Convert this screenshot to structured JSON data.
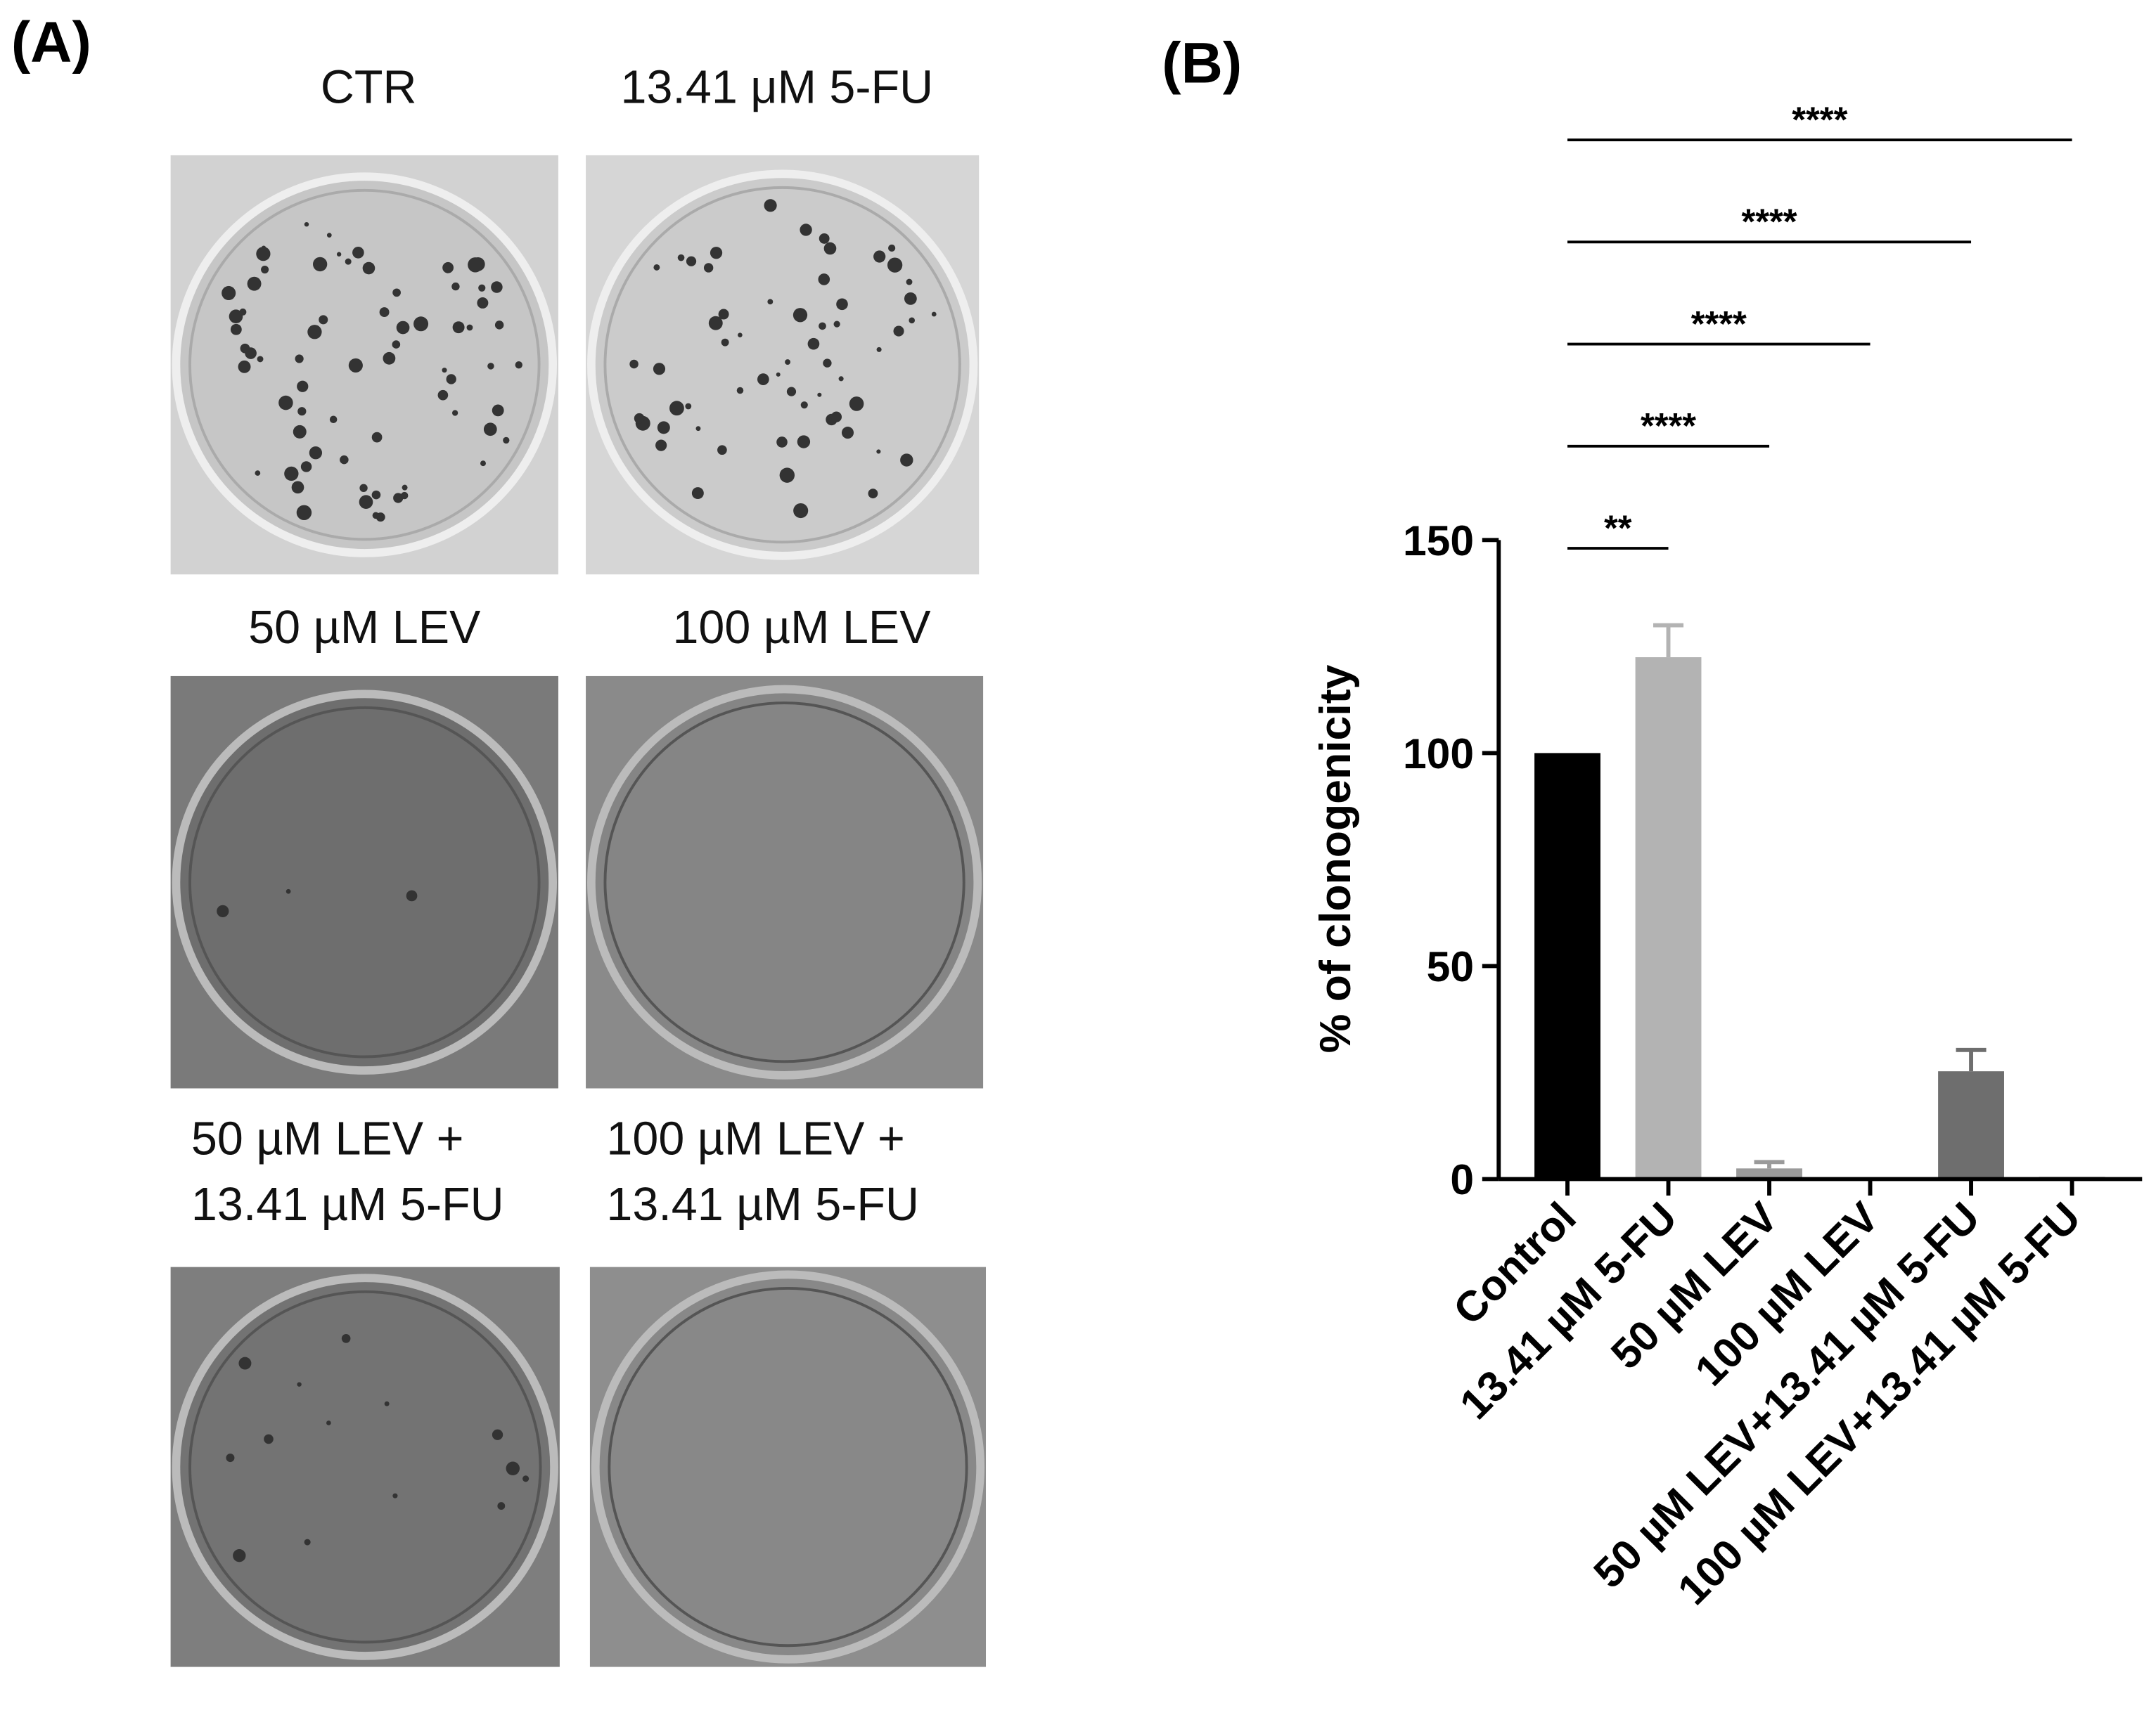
{
  "panel_a": {
    "label": "(A)",
    "plates": [
      {
        "caption": [
          "CTR"
        ]
      },
      {
        "caption": [
          "13.41 μM 5-FU"
        ]
      },
      {
        "caption": [
          "50 µM LEV"
        ]
      },
      {
        "caption": [
          "100 µM LEV"
        ]
      },
      {
        "caption": [
          "50 µM LEV +",
          "13.41 µM 5-FU"
        ]
      },
      {
        "caption": [
          "100 µM LEV +",
          "13.41 µM 5-FU"
        ]
      }
    ]
  },
  "chart_data": {
    "type": "bar",
    "panel_label": "(B)",
    "y_label": "% of clonogenicity",
    "categories": [
      "Control",
      "13.41 µM 5-FU",
      "50 µM LEV",
      "100 µM LEV",
      "50 µM LEV+13.41 µM 5-FU",
      "100 µM LEV+13.41 µM 5-FU"
    ],
    "values": [
      100,
      122.5,
      2.5,
      0,
      25.3,
      0.5
    ],
    "errors": [
      null,
      7.5,
      1.5,
      null,
      5,
      null
    ],
    "colors": [
      "#000000",
      "#b3b3b3",
      "#9a9a9a",
      "#8a8a8a",
      "#6e6e6e",
      "#3a3a3a"
    ],
    "ylim": [
      0,
      150
    ],
    "yticks": [
      0,
      50,
      100,
      150
    ],
    "significance": [
      "**",
      "****",
      "****",
      "****",
      "****"
    ]
  }
}
